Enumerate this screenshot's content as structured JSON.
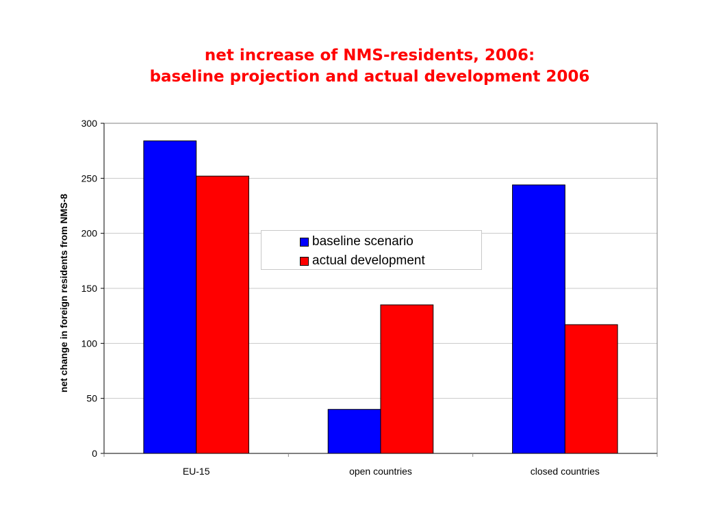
{
  "title": {
    "line1": "net increase of NMS-residents, 2006:",
    "line2": "baseline projection and actual development 2006"
  },
  "colors": {
    "title": "#ff0000",
    "baseline": "#0000ff",
    "actual": "#ff0000",
    "grid": "#c8c8c8"
  },
  "chart_data": {
    "type": "bar",
    "title": "net increase of NMS-residents, 2006: baseline projection and actual development 2006",
    "xlabel": "",
    "ylabel": "net change in foreign residents from NMS-8",
    "categories": [
      "EU-15",
      "open countries",
      "closed countries"
    ],
    "series": [
      {
        "name": "baseline scenario",
        "values": [
          284,
          40,
          244
        ],
        "color": "#0000ff"
      },
      {
        "name": "actual development",
        "values": [
          252,
          135,
          117
        ],
        "color": "#ff0000"
      }
    ],
    "ylim": [
      0,
      300
    ],
    "yticks": [
      "0",
      "50",
      "100",
      "150",
      "200",
      "250",
      "300"
    ],
    "grid": true,
    "legend_position": "center"
  }
}
